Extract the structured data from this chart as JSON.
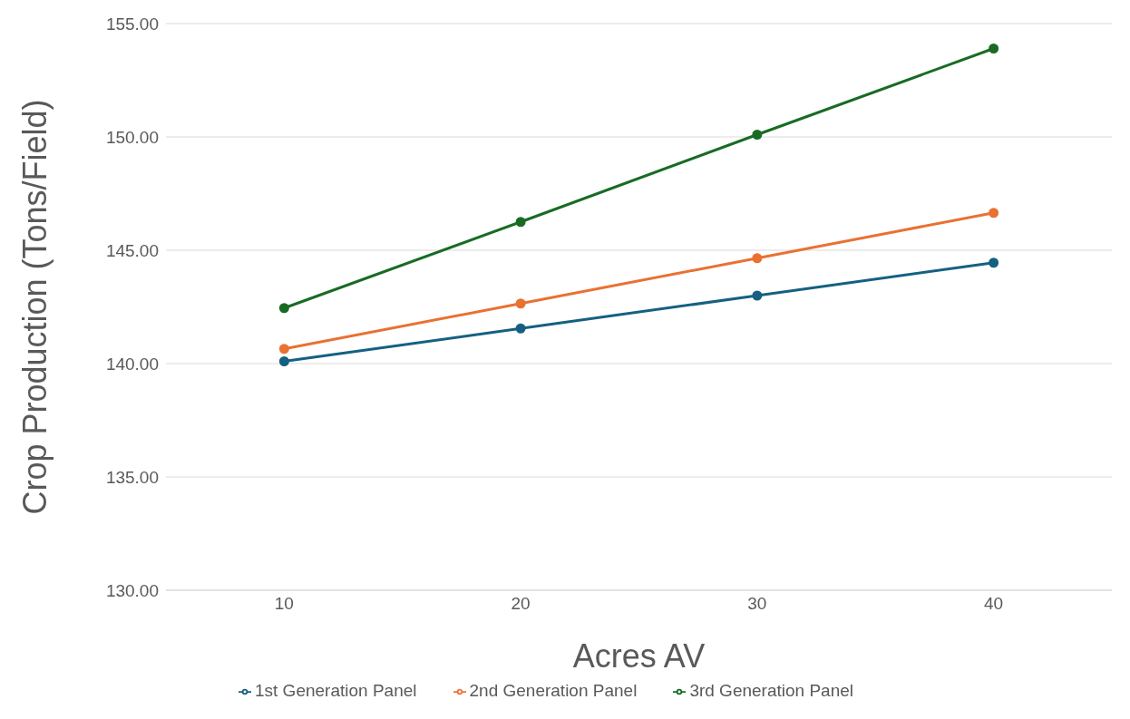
{
  "chart_data": {
    "type": "line",
    "xlabel": "Acres AV",
    "ylabel": "Crop Production (Tons/Field)",
    "categories": [
      "10",
      "20",
      "30",
      "40"
    ],
    "series": [
      {
        "name": "1st Generation Panel",
        "color": "#156082",
        "values": [
          140.1,
          141.55,
          143.0,
          144.45
        ]
      },
      {
        "name": "2nd Generation Panel",
        "color": "#e97132",
        "values": [
          140.65,
          142.65,
          144.65,
          146.65
        ]
      },
      {
        "name": "3rd Generation Panel",
        "color": "#196b24",
        "values": [
          142.45,
          146.25,
          150.1,
          153.9
        ]
      }
    ],
    "ylim": [
      130,
      155
    ],
    "yticks": [
      {
        "value": 130,
        "label": "130.00"
      },
      {
        "value": 135,
        "label": "135.00"
      },
      {
        "value": 140,
        "label": "140.00"
      },
      {
        "value": 145,
        "label": "145.00"
      },
      {
        "value": 150,
        "label": "150.00"
      },
      {
        "value": 155,
        "label": "155.00"
      }
    ],
    "grid": "y",
    "legend": "bottom",
    "marker": "circle",
    "line_style": "solid"
  }
}
